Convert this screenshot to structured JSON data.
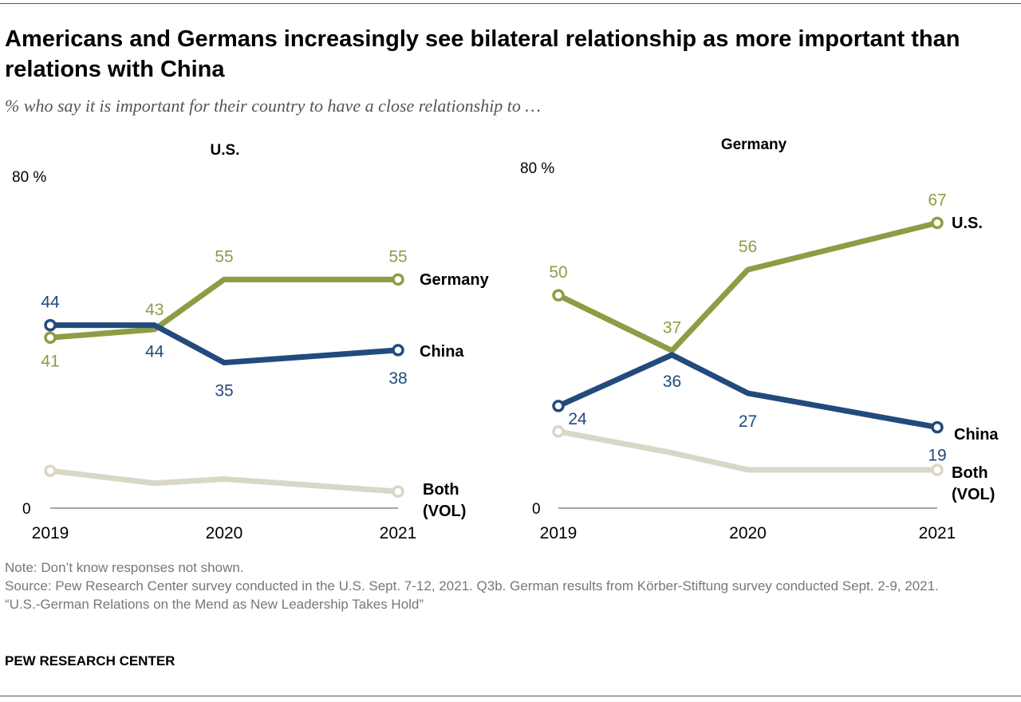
{
  "title": "Americans and Germans increasingly see bilateral relationship as more important than relations with China",
  "subtitle": "% who say it is important for their country to have a close relationship to …",
  "colors": {
    "olive": "#8f9c46",
    "navy": "#234a7c",
    "gray": "#dad7c7",
    "axis": "#8a8a8a"
  },
  "chart_data": [
    {
      "type": "line",
      "title": "U.S.",
      "ylim": [
        0,
        80
      ],
      "y_tick_labels": [
        "0",
        "80 %"
      ],
      "x_tick_labels": [
        "2019",
        "2020",
        "2021"
      ],
      "x": [
        2019,
        2019.6,
        2020,
        2021
      ],
      "series": [
        {
          "name": "Germany",
          "color": "#8f9c46",
          "values": [
            41,
            43,
            55,
            55
          ],
          "labels": [
            "41",
            "43",
            "55",
            "55"
          ]
        },
        {
          "name": "China",
          "color": "#234a7c",
          "values": [
            44,
            44,
            35,
            38
          ],
          "labels": [
            "44",
            "44",
            "35",
            "38"
          ]
        },
        {
          "name": "Both (VOL)",
          "color": "#dad7c7",
          "values": [
            9,
            6,
            7,
            4
          ],
          "labels": []
        }
      ]
    },
    {
      "type": "line",
      "title": "Germany",
      "ylim": [
        0,
        80
      ],
      "y_tick_labels": [
        "0",
        "80 %"
      ],
      "x_tick_labels": [
        "2019",
        "2020",
        "2021"
      ],
      "x": [
        2019,
        2019.6,
        2020,
        2021
      ],
      "series": [
        {
          "name": "U.S.",
          "color": "#8f9c46",
          "values": [
            50,
            37,
            56,
            67
          ],
          "labels": [
            "50",
            "37",
            "56",
            "67"
          ]
        },
        {
          "name": "China",
          "color": "#234a7c",
          "values": [
            24,
            36,
            27,
            19
          ],
          "labels": [
            "24",
            "36",
            "27",
            "19"
          ]
        },
        {
          "name": "Both (VOL)",
          "color": "#dad7c7",
          "values": [
            18,
            13,
            9,
            9
          ],
          "labels": []
        }
      ]
    }
  ],
  "footer": {
    "note": "Note: Don’t know responses not shown.",
    "source": "Source: Pew Research Center survey conducted in the U.S. Sept. 7-12, 2021. Q3b. German results from Körber-Stiftung survey conducted Sept. 2-9, 2021.",
    "report": "“U.S.-German Relations on the Mend as New Leadership Takes Hold”",
    "brand": "PEW RESEARCH CENTER"
  }
}
